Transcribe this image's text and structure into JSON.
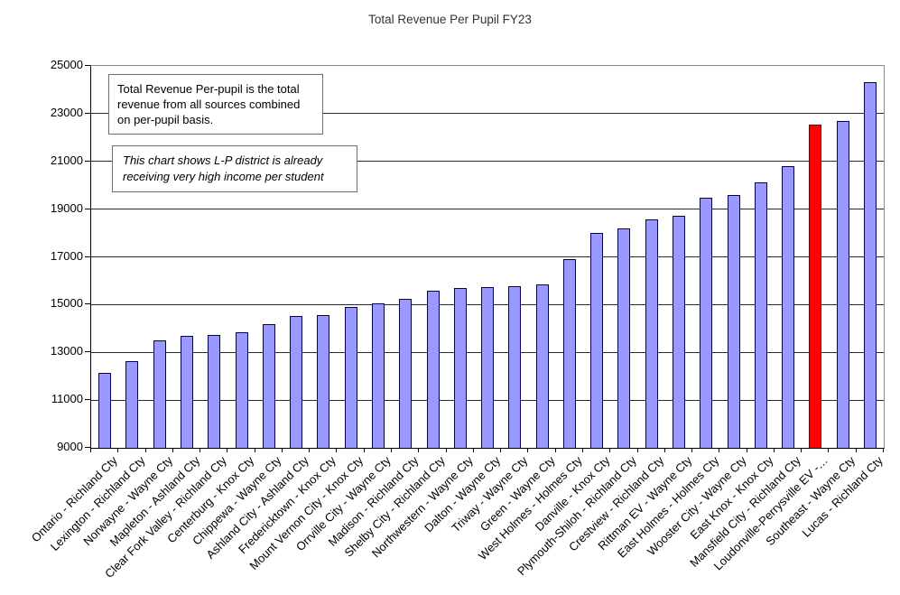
{
  "chart_data": {
    "type": "bar",
    "title": "Total Revenue Per Pupil FY23",
    "categories": [
      "Ontario - Richland Cty",
      "Lexington - Richland Cty",
      "Norwayne - Wayne Cty",
      "Mapleton - Ashland Cty",
      "Clear Fork Valley - Richland Cty",
      "Centerburg - Knox Cty",
      "Chippewa - Wayne Cty",
      "Ashland City - Ashland Cty",
      "Fredericktown - Knox Cty",
      "Mount Vernon City - Knox Cty",
      "Orrville City - Wayne Cty",
      "Madison - Richland Cty",
      "Shelby City - Richland Cty",
      "Northwestern - Wayne Cty",
      "Dalton - Wayne Cty",
      "Triway - Wayne Cty",
      "Green - Wayne Cty",
      "West Holmes - Holmes Cty",
      "Danville - Knox Cty",
      "Plymouth-Shiloh - Richland Cty",
      "Crestview - Richland Cty",
      "Rittman EV - Wayne Cty",
      "East Holmes - Holmes Cty",
      "Wooster City - Wayne Cty",
      "East Knox - Knox Cty",
      "Mansfield City - Richland Cty",
      "Loudonville-Perrysville EV -…",
      "Southeast - Wayne Cty",
      "Lucas - Richland Cty"
    ],
    "values": [
      12100,
      12600,
      13450,
      13650,
      13690,
      13800,
      14150,
      14480,
      14520,
      14850,
      15000,
      15200,
      15540,
      15660,
      15680,
      15730,
      15810,
      16850,
      17950,
      18150,
      18550,
      18700,
      19440,
      19560,
      20100,
      20760,
      22500,
      22660,
      24300
    ],
    "highlight_index": 26,
    "xlabel": "",
    "ylabel": "",
    "ylim": [
      9000,
      25000
    ],
    "yticks": [
      9000,
      11000,
      13000,
      15000,
      17000,
      19000,
      21000,
      23000,
      25000
    ],
    "ytick_labels": [
      "9000",
      "11000",
      "13000",
      "15000",
      "17000",
      "19000",
      "21000",
      "23000",
      "25000"
    ],
    "grid": true,
    "legend": false,
    "colors": {
      "bar_fill": "#9999FF",
      "bar_border": "#000055",
      "highlight_fill": "#FF0000",
      "highlight_border": "#7a0000",
      "gridline": "#2b2b2b",
      "axis": "#000000",
      "plot_border": "#8a8a8a",
      "background": "#FFFFFF"
    },
    "annotations": [
      {
        "text": "Total Revenue Per-pupil is the total revenue from all sources combined on per-pupil basis.",
        "style": "normal"
      },
      {
        "text": "This chart shows L-P district is already receiving very high income per student",
        "style": "italic"
      }
    ]
  }
}
